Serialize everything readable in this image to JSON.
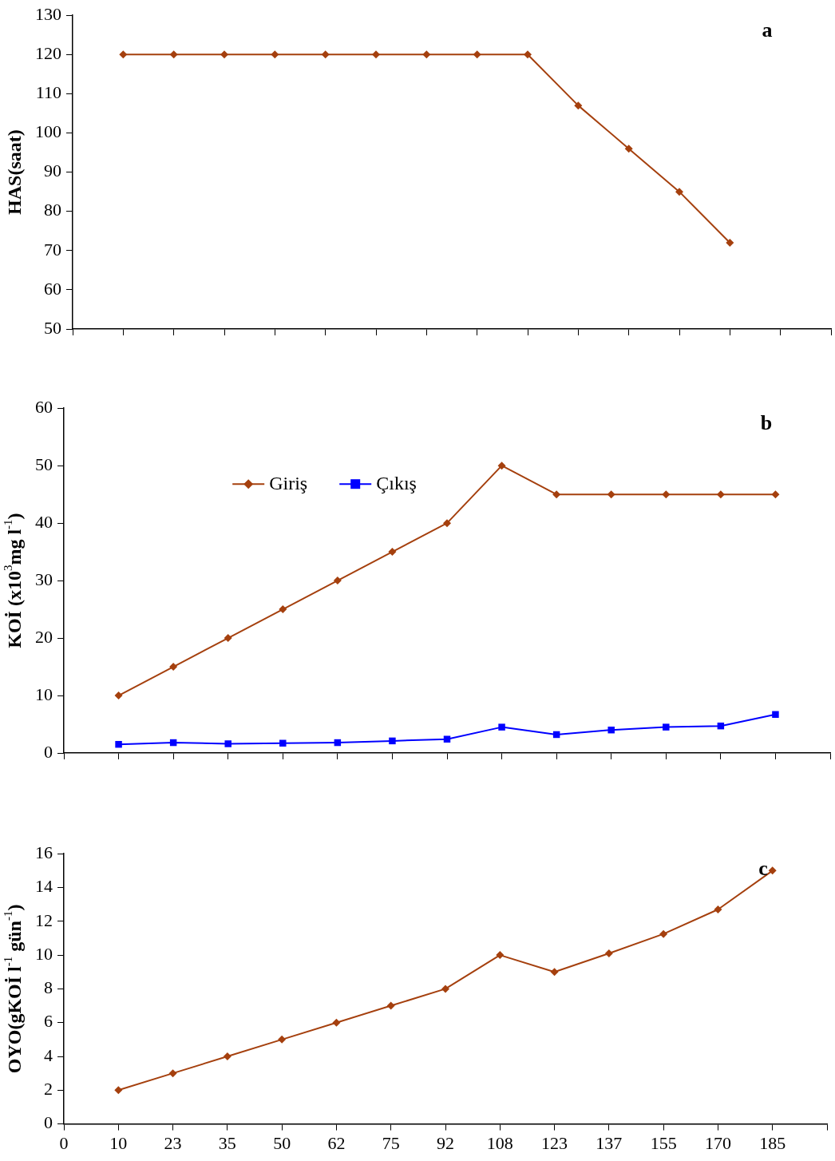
{
  "chart_data": [
    {
      "type": "line",
      "title": "a",
      "ylabel": "HAS(saat)",
      "categories": [
        null,
        null,
        null,
        null,
        null,
        null,
        null,
        null,
        null,
        null,
        null,
        null,
        null,
        null,
        null,
        null
      ],
      "ylim": [
        50,
        130
      ],
      "yticks": [
        50,
        60,
        70,
        80,
        90,
        100,
        110,
        120,
        130
      ],
      "grid": false,
      "legend": false,
      "tick_labels": "y",
      "series": [
        {
          "color": "#a5400e",
          "marker": "diamond",
          "values": [
            null,
            120,
            120,
            120,
            120,
            120,
            120,
            120,
            120,
            120,
            107,
            96,
            85,
            72,
            null,
            null
          ]
        }
      ]
    },
    {
      "type": "line",
      "title": "b",
      "ylabel": "KOİ (x10$^{3}$mg l$^{-1}$)",
      "categories": [
        null,
        null,
        null,
        null,
        null,
        null,
        null,
        null,
        null,
        null,
        null,
        null,
        null,
        null,
        null
      ],
      "ylim": [
        0,
        60
      ],
      "yticks": [
        0,
        10,
        20,
        30,
        40,
        50,
        60
      ],
      "grid": false,
      "legend": "top left",
      "tick_labels": "y",
      "series": [
        {
          "name": "Giriş",
          "color": "#a5400e",
          "marker": "diamond",
          "values": [
            null,
            10,
            15,
            20,
            25,
            30,
            35,
            40,
            50,
            45,
            45,
            45,
            45,
            45,
            null
          ]
        },
        {
          "name": "Çıkış",
          "color": "#0000ff",
          "marker": "square",
          "values": [
            null,
            1.5,
            1.8,
            1.6,
            1.7,
            1.8,
            2.1,
            2.4,
            4.5,
            3.2,
            4.0,
            4.5,
            4.7,
            6.7,
            null
          ]
        }
      ]
    },
    {
      "type": "line",
      "title": "c",
      "ylabel": "OYO(gKOİ l$^{-1}$ gün$^{-1}$)",
      "categories": [
        "0",
        "10",
        "23",
        "35",
        "50",
        "62",
        "75",
        "92",
        "108",
        "123",
        "137",
        "155",
        "170",
        "185",
        null
      ],
      "ylim": [
        0,
        16
      ],
      "yticks": [
        0,
        2,
        4,
        6,
        8,
        10,
        12,
        14,
        16
      ],
      "grid": false,
      "legend": false,
      "series": [
        {
          "color": "#a5400e",
          "marker": "diamond",
          "values": [
            null,
            2,
            3,
            4,
            5,
            6,
            7,
            8,
            10,
            9,
            10.1,
            11.25,
            12.7,
            15,
            null
          ]
        }
      ]
    }
  ]
}
